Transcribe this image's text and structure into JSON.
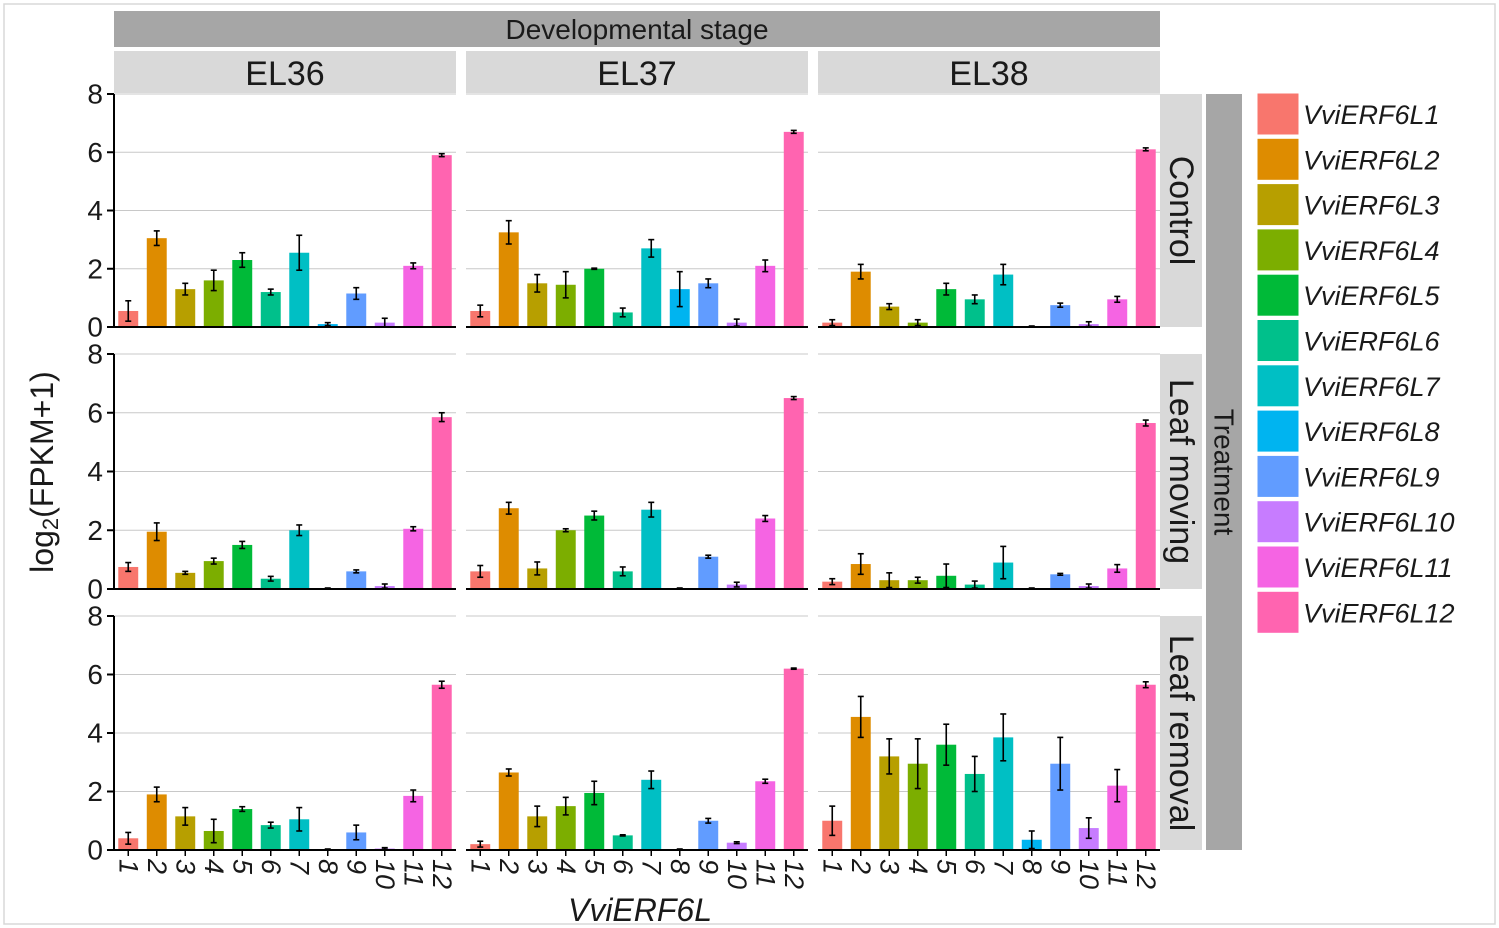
{
  "chart_data": {
    "type": "bar",
    "facet_col_title": "Developmental stage",
    "facet_row_title": "Treatment",
    "columns": [
      "EL36",
      "EL37",
      "EL38"
    ],
    "rows": [
      "Control",
      "Leaf moving",
      "Leaf removal"
    ],
    "categories": [
      "1",
      "2",
      "3",
      "4",
      "5",
      "6",
      "7",
      "8",
      "9",
      "10",
      "11",
      "12"
    ],
    "xlabel": "VviERF6L",
    "ylabel_main": "log",
    "ylabel_sub": "2",
    "ylabel_rest": "(FPKM+1)",
    "ylim": [
      0,
      8
    ],
    "yticks": [
      "0",
      "2",
      "4",
      "6",
      "8"
    ],
    "grid": true,
    "legend_position": "right",
    "legend": [
      "VviERF6L1",
      "VviERF6L2",
      "VviERF6L3",
      "VviERF6L4",
      "VviERF6L5",
      "VviERF6L6",
      "VviERF6L7",
      "VviERF6L8",
      "VviERF6L9",
      "VviERF6L10",
      "VviERF6L11",
      "VviERF6L12"
    ],
    "colors": [
      "#F8766D",
      "#DE8C00",
      "#B79F00",
      "#7CAE00",
      "#00BA38",
      "#00C08B",
      "#00BFC4",
      "#00B4F0",
      "#619CFF",
      "#C77CFF",
      "#F564E3",
      "#FF64B0"
    ],
    "panels": [
      {
        "row": "Control",
        "col": "EL36",
        "values": [
          0.55,
          3.05,
          1.3,
          1.6,
          2.3,
          1.2,
          2.55,
          0.1,
          1.15,
          0.15,
          2.1,
          5.9
        ],
        "errors": [
          0.35,
          0.25,
          0.2,
          0.35,
          0.25,
          0.1,
          0.6,
          0.05,
          0.2,
          0.15,
          0.1,
          0.05
        ]
      },
      {
        "row": "Control",
        "col": "EL37",
        "values": [
          0.55,
          3.25,
          1.5,
          1.45,
          2.0,
          0.5,
          2.7,
          1.3,
          1.5,
          0.15,
          2.1,
          6.7
        ],
        "errors": [
          0.2,
          0.4,
          0.3,
          0.45,
          0.02,
          0.15,
          0.3,
          0.6,
          0.15,
          0.12,
          0.2,
          0.05
        ]
      },
      {
        "row": "Control",
        "col": "EL38",
        "values": [
          0.15,
          1.9,
          0.7,
          0.15,
          1.3,
          0.95,
          1.8,
          0.0,
          0.75,
          0.1,
          0.95,
          6.1
        ],
        "errors": [
          0.1,
          0.25,
          0.1,
          0.1,
          0.2,
          0.15,
          0.35,
          0.0,
          0.07,
          0.08,
          0.1,
          0.05
        ]
      },
      {
        "row": "Leaf moving",
        "col": "EL36",
        "values": [
          0.75,
          1.95,
          0.55,
          0.95,
          1.5,
          0.35,
          2.0,
          0.0,
          0.6,
          0.1,
          2.05,
          5.85
        ],
        "errors": [
          0.15,
          0.3,
          0.05,
          0.1,
          0.12,
          0.08,
          0.18,
          0.0,
          0.05,
          0.07,
          0.07,
          0.15
        ]
      },
      {
        "row": "Leaf moving",
        "col": "EL37",
        "values": [
          0.6,
          2.75,
          0.7,
          2.0,
          2.5,
          0.6,
          2.7,
          0.0,
          1.1,
          0.15,
          2.4,
          6.5
        ],
        "errors": [
          0.2,
          0.2,
          0.22,
          0.05,
          0.15,
          0.15,
          0.25,
          0.0,
          0.05,
          0.08,
          0.1,
          0.05
        ]
      },
      {
        "row": "Leaf moving",
        "col": "EL38",
        "values": [
          0.25,
          0.85,
          0.3,
          0.3,
          0.45,
          0.15,
          0.9,
          0.0,
          0.5,
          0.1,
          0.7,
          5.65
        ],
        "errors": [
          0.1,
          0.35,
          0.25,
          0.1,
          0.4,
          0.12,
          0.55,
          0.0,
          0.03,
          0.07,
          0.13,
          0.1
        ]
      },
      {
        "row": "Leaf removal",
        "col": "EL36",
        "values": [
          0.4,
          1.9,
          1.15,
          0.65,
          1.4,
          0.85,
          1.05,
          0.0,
          0.6,
          0.05,
          1.85,
          5.65
        ],
        "errors": [
          0.2,
          0.25,
          0.3,
          0.4,
          0.08,
          0.1,
          0.4,
          0.0,
          0.25,
          0.03,
          0.2,
          0.12
        ]
      },
      {
        "row": "Leaf removal",
        "col": "EL37",
        "values": [
          0.2,
          2.65,
          1.15,
          1.5,
          1.95,
          0.5,
          2.4,
          0.0,
          1.0,
          0.25,
          2.35,
          6.2
        ],
        "errors": [
          0.1,
          0.12,
          0.35,
          0.3,
          0.4,
          0.02,
          0.3,
          0.0,
          0.08,
          0.03,
          0.07,
          0.02
        ]
      },
      {
        "row": "Leaf removal",
        "col": "EL38",
        "values": [
          1.0,
          4.55,
          3.2,
          2.95,
          3.6,
          2.6,
          3.85,
          0.35,
          2.95,
          0.75,
          2.2,
          5.65
        ],
        "errors": [
          0.5,
          0.7,
          0.6,
          0.85,
          0.7,
          0.6,
          0.8,
          0.3,
          0.9,
          0.35,
          0.55,
          0.1
        ]
      }
    ]
  }
}
